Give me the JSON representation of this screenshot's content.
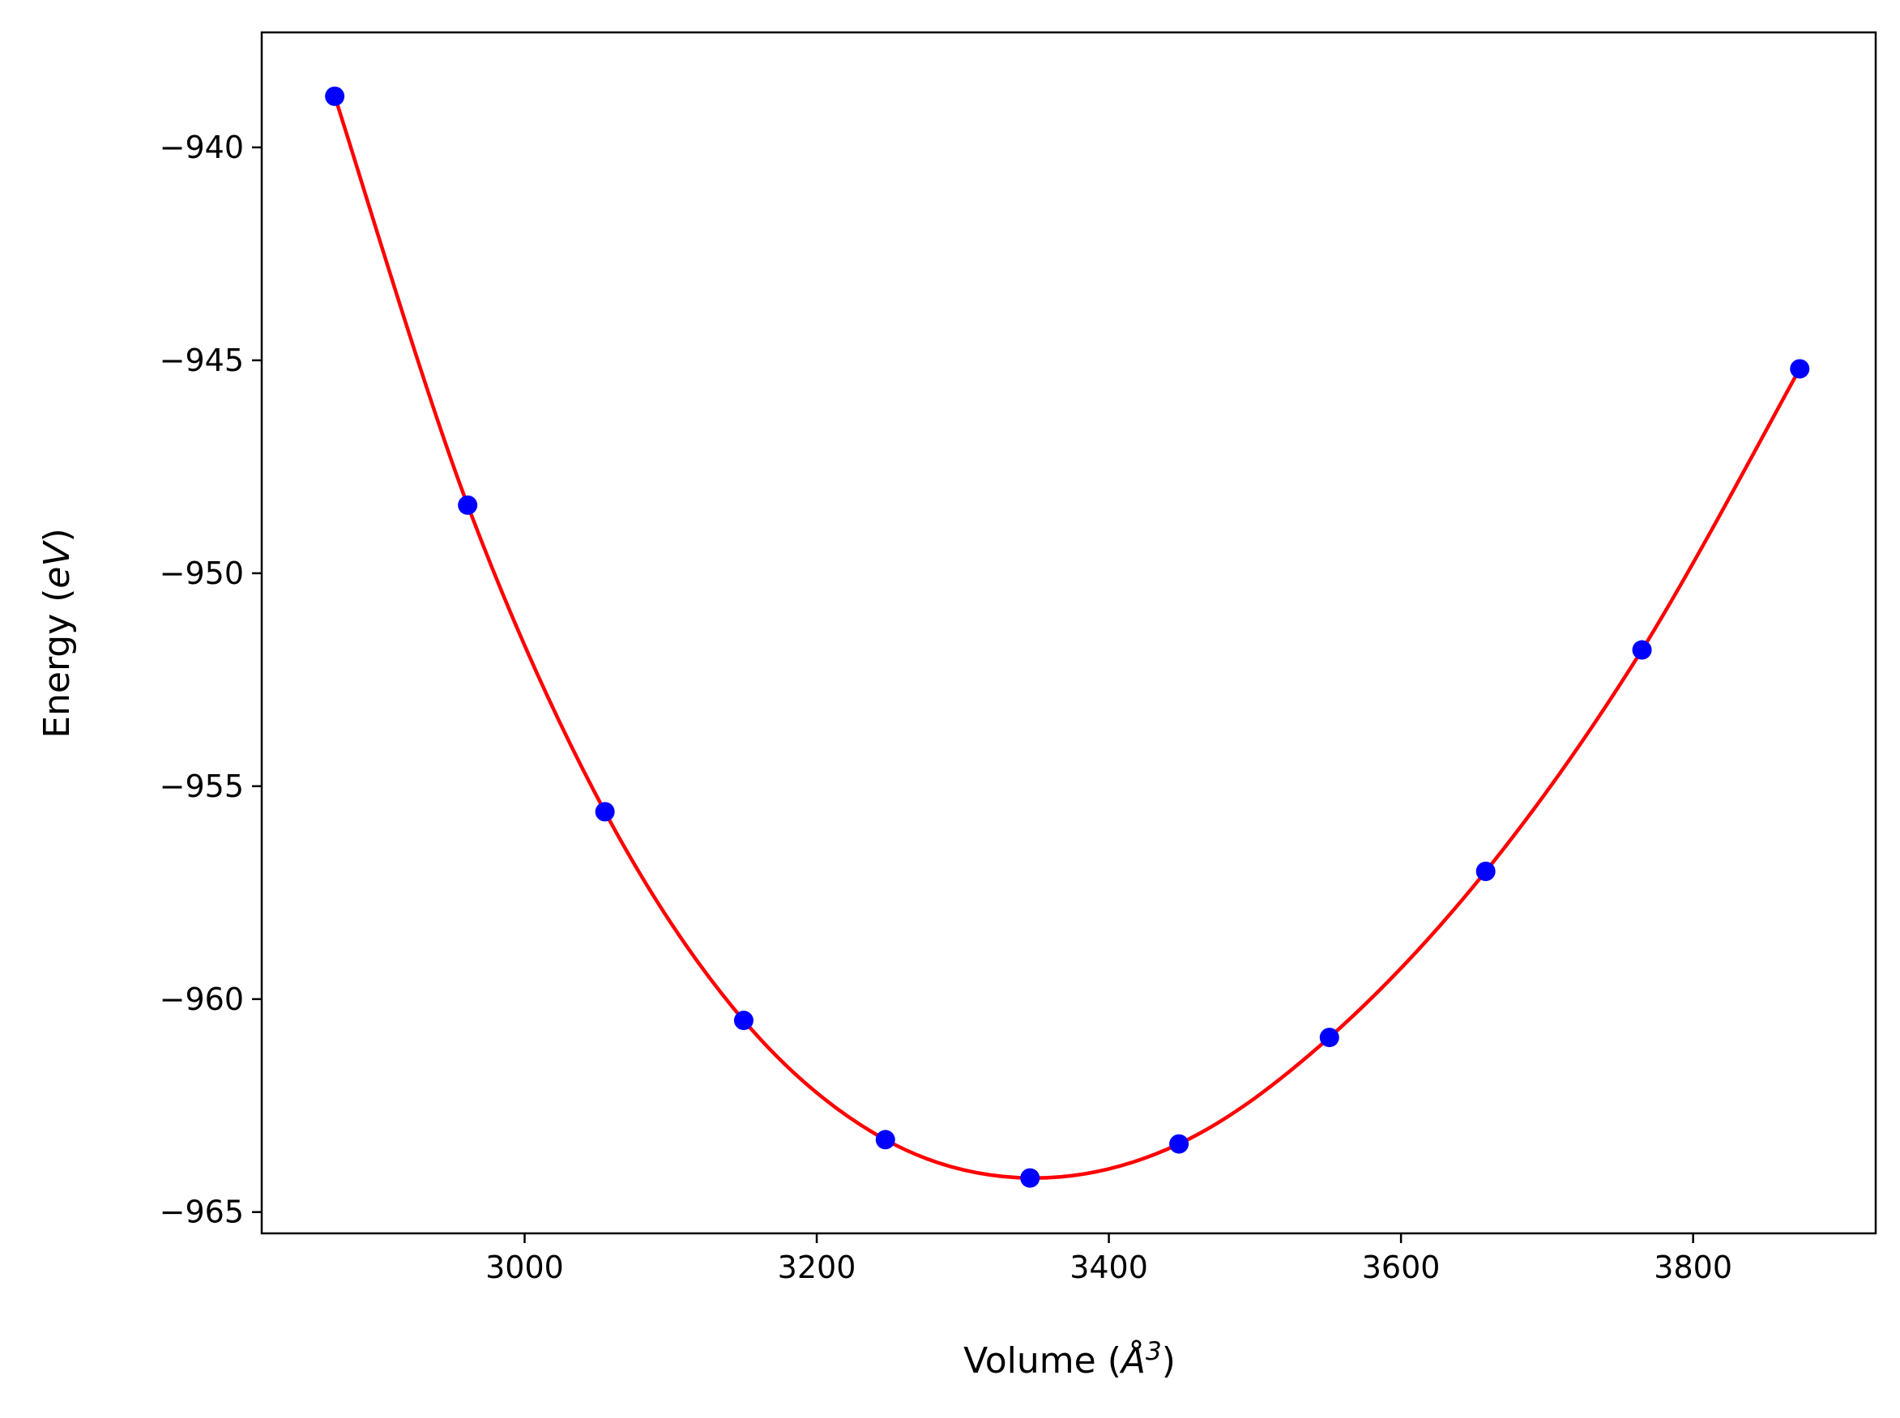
{
  "chart_data": {
    "type": "scatter",
    "xlabel": "Volume (",
    "xlabel_symbol": "Å",
    "xlabel_sup": "3",
    "xlabel_close": ")",
    "ylabel": "Energy (",
    "ylabel_unit": "eV",
    "ylabel_close": ")",
    "xlim": [
      2820,
      3925
    ],
    "ylim": [
      -965.5,
      -937.3
    ],
    "x_ticks": [
      3000,
      3200,
      3400,
      3600,
      3800
    ],
    "x_tick_labels": [
      "3000",
      "3200",
      "3400",
      "3600",
      "3800"
    ],
    "y_ticks": [
      -940,
      -945,
      -950,
      -955,
      -960,
      -965
    ],
    "y_tick_labels": [
      "−940",
      "−945",
      "−950",
      "−955",
      "−960",
      "−965"
    ],
    "grid": false,
    "legend": "none",
    "series": [
      {
        "kind": "points",
        "color": "#0000ff",
        "x": [
          2870,
          2961,
          3055,
          3150,
          3247,
          3346,
          3448,
          3551,
          3658,
          3765,
          3873
        ],
        "y": [
          -938.8,
          -948.4,
          -955.6,
          -960.5,
          -963.3,
          -964.2,
          -963.4,
          -960.9,
          -957.0,
          -951.8,
          -945.2
        ]
      },
      {
        "kind": "fit",
        "color": "#ff0000",
        "x": [
          2870,
          2961,
          3055,
          3150,
          3247,
          3346,
          3448,
          3551,
          3658,
          3765,
          3873
        ],
        "y": [
          -938.8,
          -948.4,
          -955.6,
          -960.5,
          -963.3,
          -964.2,
          -963.4,
          -960.9,
          -957.0,
          -951.8,
          -945.2
        ]
      }
    ]
  }
}
